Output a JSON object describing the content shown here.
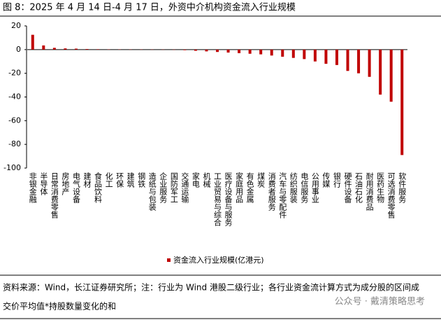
{
  "chart_data": {
    "type": "bar",
    "title": "图 8：2025 年 4 月 14 日-4 月 17 日，外资中介机构资金流入行业规模",
    "categories": [
      "非银金融",
      "半导体",
      "日常消费零售",
      "房地产",
      "电气设备",
      "建材",
      "食品饮料",
      "化工",
      "环保",
      "建筑",
      "钢铁",
      "造纸与包装",
      "企业服务",
      "国防军工",
      "交通运输",
      "家电",
      "机械",
      "工业贸易与综合",
      "医疗设备与服务",
      "家庭用品",
      "有色金属",
      "煤炭",
      "消费者服务",
      "汽车与零配件",
      "纺织服装",
      "电信服务",
      "公用事业",
      "传媒",
      "银行",
      "硬件设备",
      "石油石化",
      "耐用消费品",
      "医药生物",
      "可选消费零售",
      "软件服务"
    ],
    "series": [
      {
        "name": "资金流入行业规模(亿港元)",
        "color": "#c00000",
        "values": [
          12.5,
          3.5,
          1.5,
          1.0,
          0.8,
          0.5,
          0.3,
          0.2,
          0.1,
          0.05,
          0.05,
          0.03,
          0.02,
          -0.2,
          -0.5,
          -1.0,
          -1.5,
          -2.0,
          -2.5,
          -3.0,
          -3.5,
          -4.0,
          -5.0,
          -6.0,
          -7.0,
          -8.0,
          -10.0,
          -12.0,
          -13.0,
          -18.0,
          -20.0,
          -23.0,
          -38.0,
          -44.0,
          -89.0
        ]
      }
    ],
    "ylim": [
      -100,
      20
    ],
    "yticks": [
      20,
      0,
      -20,
      -40,
      -60,
      -80,
      -100
    ]
  },
  "source": [
    "资料来源：Wind，长江证券研究所；注：行业为 Wind 港股二级行业；各行业资金流计算方式为成分股的区间成",
    "交价平均值*持股数量变化的和"
  ],
  "watermark": "公众号 · 戴清策略思考"
}
